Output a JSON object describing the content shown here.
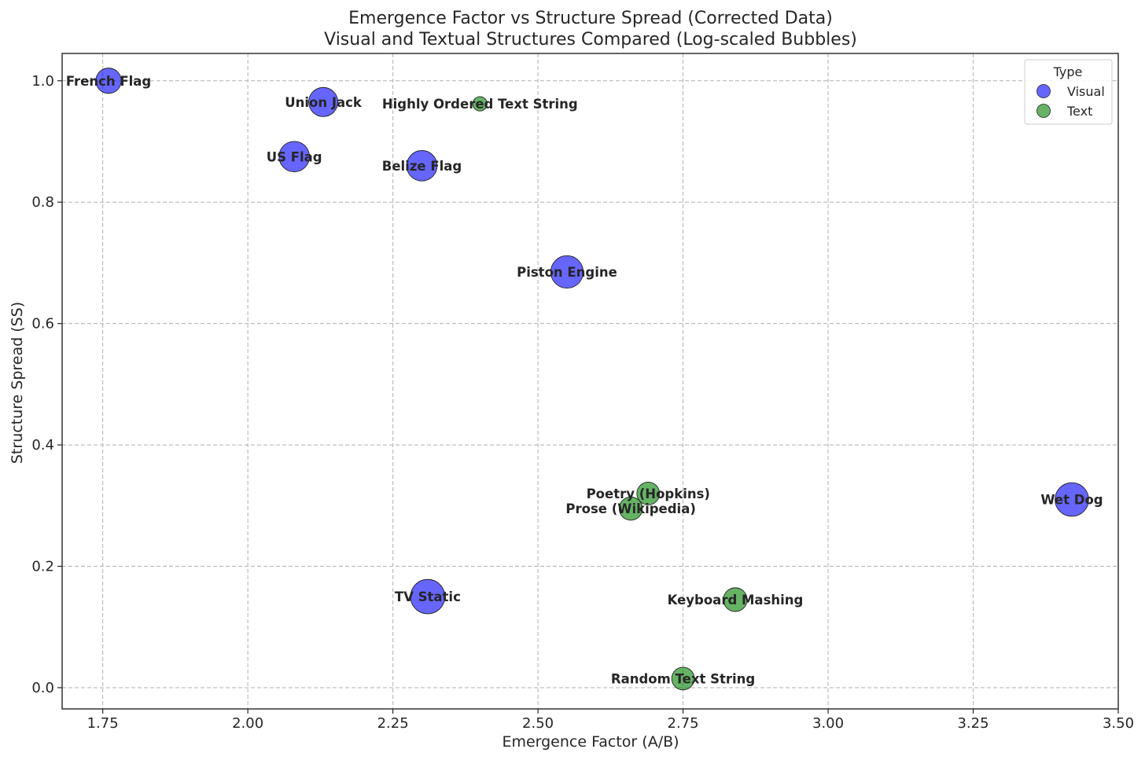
{
  "chart_data": {
    "type": "scatter",
    "title": "Emergence Factor vs Structure Spread (Corrected Data)",
    "subtitle": "Visual and Textual Structures Compared (Log-scaled Bubbles)",
    "xlabel": "Emergence Factor (A/B)",
    "ylabel": "Structure Spread (SS)",
    "xlim": [
      1.68,
      3.5
    ],
    "ylim": [
      -0.035,
      1.045
    ],
    "xticks": [
      "1.75",
      "2.00",
      "2.25",
      "2.50",
      "2.75",
      "3.00",
      "3.25",
      "3.50"
    ],
    "yticks": [
      "0.0",
      "0.2",
      "0.4",
      "0.6",
      "0.8",
      "1.0"
    ],
    "grid": true,
    "bubble_scale": "log",
    "legend": {
      "title": "Type",
      "placement": "top-right",
      "entries": [
        {
          "name": "Visual",
          "color": "#0000ff"
        },
        {
          "name": "Text",
          "color": "#008000"
        }
      ]
    },
    "series": [
      {
        "name": "Visual",
        "color": "#0000ff",
        "points": [
          {
            "label": "French Flag",
            "x": 1.76,
            "y": 1.0,
            "size": 2.5
          },
          {
            "label": "Union Jack",
            "x": 2.13,
            "y": 0.965,
            "size": 3.3
          },
          {
            "label": "US Flag",
            "x": 2.08,
            "y": 0.875,
            "size": 3.6
          },
          {
            "label": "Belize Flag",
            "x": 2.3,
            "y": 0.86,
            "size": 3.6
          },
          {
            "label": "Piston Engine",
            "x": 2.55,
            "y": 0.685,
            "size": 4.1
          },
          {
            "label": "Wet Dog",
            "x": 3.42,
            "y": 0.31,
            "size": 4.4
          },
          {
            "label": "TV Static",
            "x": 2.31,
            "y": 0.15,
            "size": 4.6
          }
        ]
      },
      {
        "name": "Text",
        "color": "#008000",
        "points": [
          {
            "label": "Highly Ordered Text String",
            "x": 2.4,
            "y": 0.962,
            "size": 0.8
          },
          {
            "label": "Poetry (Hopkins)",
            "x": 2.69,
            "y": 0.32,
            "size": 2.0
          },
          {
            "label": "Prose (Wikipedia)",
            "x": 2.66,
            "y": 0.295,
            "size": 2.1
          },
          {
            "label": "Keyboard Mashing",
            "x": 2.84,
            "y": 0.145,
            "size": 2.2
          },
          {
            "label": "Random Text String",
            "x": 2.75,
            "y": 0.015,
            "size": 2.0
          }
        ]
      }
    ]
  }
}
